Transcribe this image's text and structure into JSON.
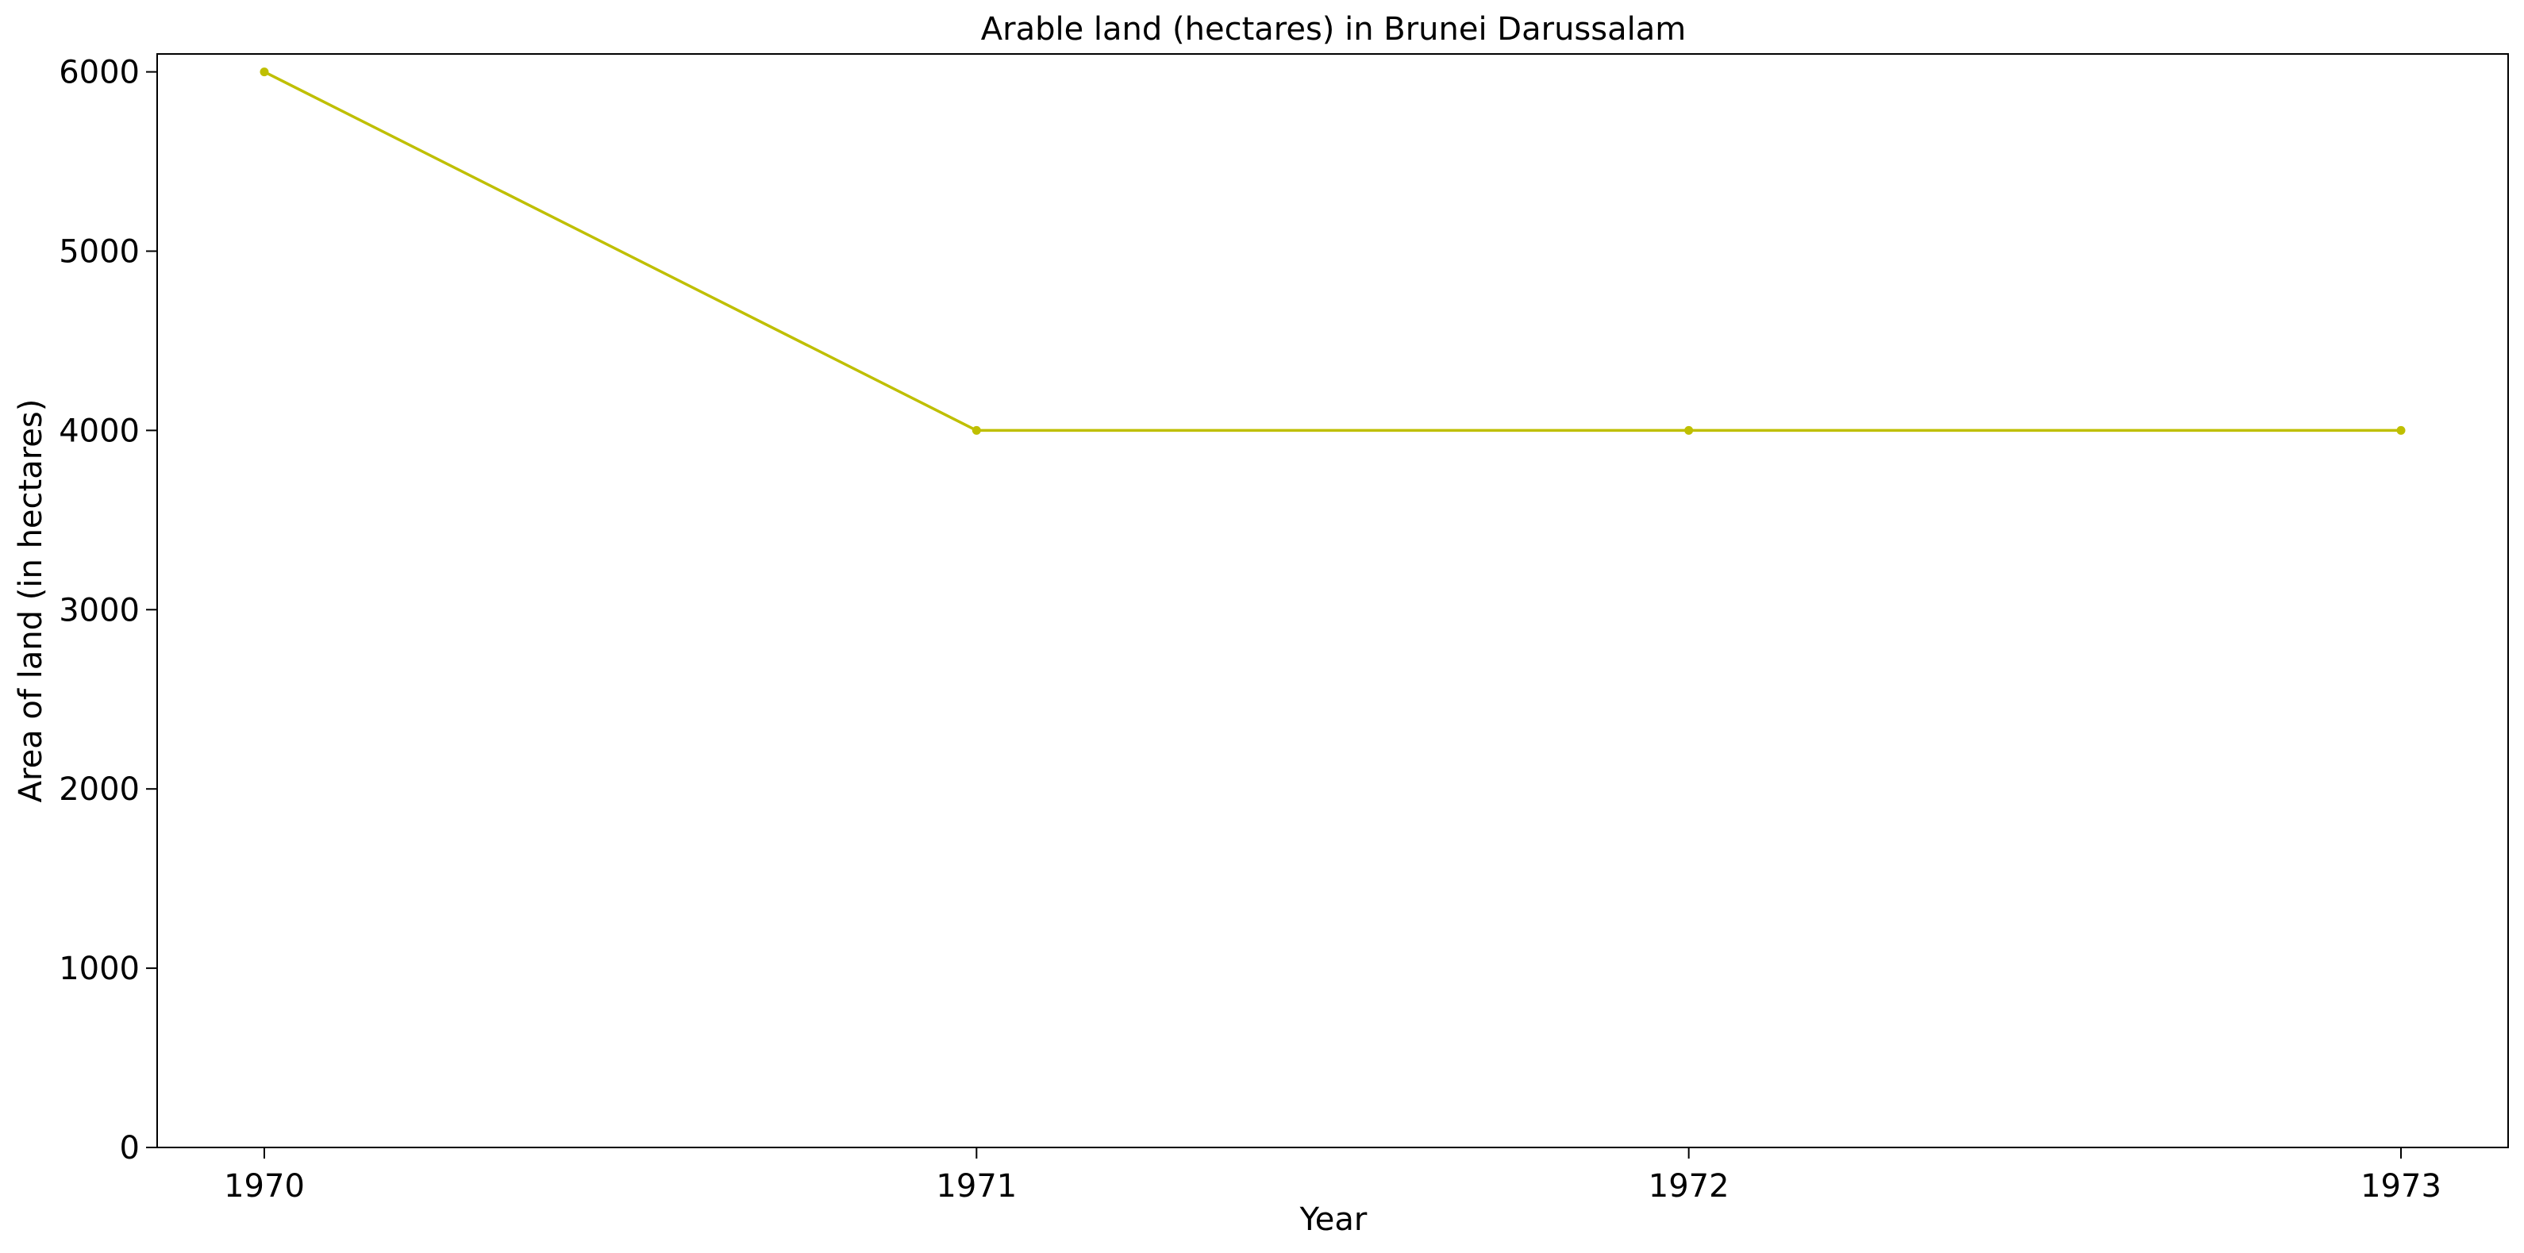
{
  "chart_data": {
    "type": "line",
    "title": "Arable land (hectares) in Brunei Darussalam",
    "xlabel": "Year",
    "ylabel": "Area of land (in hectares)",
    "categories": [
      "1970",
      "1971",
      "1972",
      "1973"
    ],
    "series": [
      {
        "values": [
          6000,
          4000,
          4000,
          4000
        ],
        "color": "#bfbf00"
      }
    ],
    "ylim": [
      0,
      6100
    ],
    "yticks": [
      0,
      1000,
      2000,
      3000,
      4000,
      5000,
      6000
    ],
    "grid": false,
    "legend": "none"
  }
}
